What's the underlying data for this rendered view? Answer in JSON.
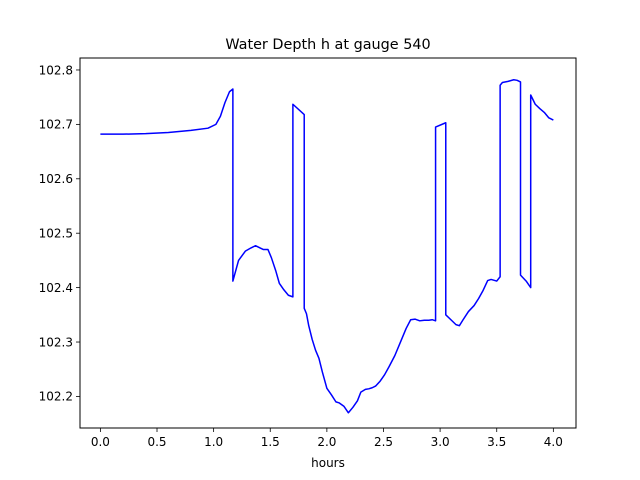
{
  "chart_data": {
    "type": "line",
    "title": "Water Depth h at gauge 540",
    "xlabel": "hours",
    "ylabel": "",
    "xlim": [
      -0.18,
      4.2
    ],
    "ylim": [
      102.142,
      102.822
    ],
    "xticks": [
      0.0,
      0.5,
      1.0,
      1.5,
      2.0,
      2.5,
      3.0,
      3.5,
      4.0
    ],
    "xtick_labels": [
      "0.0",
      "0.5",
      "1.0",
      "1.5",
      "2.0",
      "2.5",
      "3.0",
      "3.5",
      "4.0"
    ],
    "yticks": [
      102.2,
      102.3,
      102.4,
      102.5,
      102.6,
      102.7,
      102.8
    ],
    "ytick_labels": [
      "102.2",
      "102.3",
      "102.4",
      "102.5",
      "102.6",
      "102.7",
      "102.8"
    ],
    "grid": false,
    "legend": "none",
    "series": [
      {
        "color": "#0000ff",
        "x": [
          0.0,
          0.2,
          0.4,
          0.6,
          0.8,
          0.95,
          1.02,
          1.06,
          1.1,
          1.14,
          1.17,
          1.17,
          1.22,
          1.28,
          1.33,
          1.37,
          1.41,
          1.44,
          1.48,
          1.51,
          1.55,
          1.58,
          1.62,
          1.66,
          1.7,
          1.7,
          1.8,
          1.8,
          1.82,
          1.84,
          1.87,
          1.9,
          1.93,
          1.96,
          2.0,
          2.04,
          2.08,
          2.11,
          2.15,
          2.19,
          2.23,
          2.27,
          2.3,
          2.34,
          2.37,
          2.4,
          2.43,
          2.47,
          2.51,
          2.55,
          2.6,
          2.65,
          2.7,
          2.74,
          2.78,
          2.82,
          2.86,
          2.9,
          2.93,
          2.96,
          2.96,
          3.05,
          3.05,
          3.1,
          3.14,
          3.17,
          3.2,
          3.25,
          3.3,
          3.34,
          3.38,
          3.42,
          3.45,
          3.5,
          3.53,
          3.53,
          3.55,
          3.55,
          3.6,
          3.65,
          3.68,
          3.71,
          3.71,
          3.76,
          3.8,
          3.8,
          3.84,
          3.88,
          3.92,
          3.96,
          4.0
        ],
        "values": [
          102.682,
          102.682,
          102.683,
          102.685,
          102.689,
          102.693,
          102.7,
          102.715,
          102.74,
          102.76,
          102.765,
          102.412,
          102.45,
          102.467,
          102.473,
          102.477,
          102.473,
          102.47,
          102.47,
          102.455,
          102.43,
          102.408,
          102.396,
          102.386,
          102.383,
          102.737,
          102.718,
          102.362,
          102.352,
          102.33,
          102.305,
          102.285,
          102.27,
          102.245,
          102.215,
          102.203,
          102.19,
          102.188,
          102.182,
          102.17,
          102.18,
          102.192,
          102.208,
          102.213,
          102.214,
          102.216,
          102.219,
          102.228,
          102.24,
          102.255,
          102.275,
          102.3,
          102.325,
          102.341,
          102.342,
          102.339,
          102.34,
          102.34,
          102.341,
          102.339,
          102.695,
          102.703,
          102.35,
          102.34,
          102.332,
          102.33,
          102.34,
          102.356,
          102.367,
          102.38,
          102.395,
          102.413,
          102.415,
          102.412,
          102.42,
          102.772,
          102.777,
          102.777,
          102.779,
          102.782,
          102.781,
          102.778,
          102.423,
          102.412,
          102.4,
          102.754,
          102.737,
          102.729,
          102.722,
          102.712,
          102.708
        ]
      }
    ]
  }
}
